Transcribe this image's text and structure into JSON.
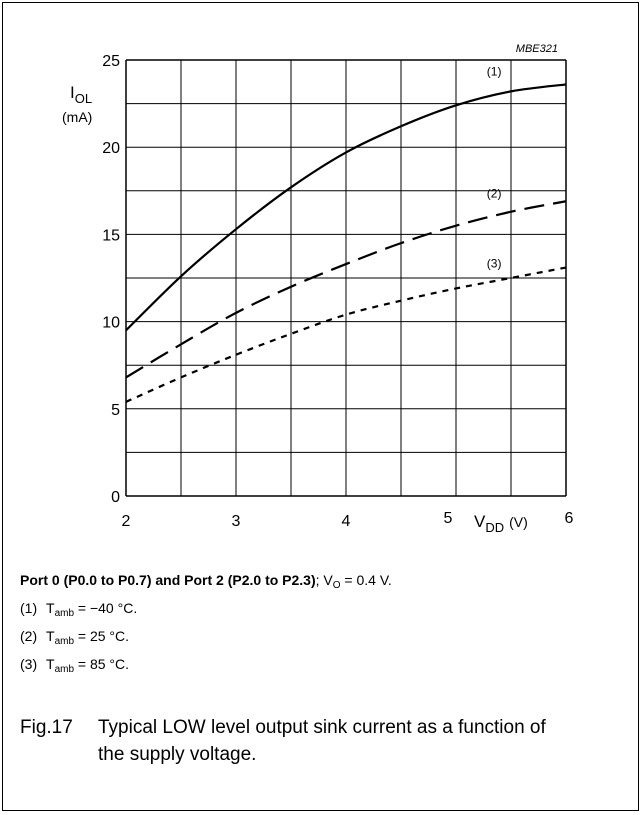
{
  "figure_code": "MBE321",
  "y_axis_label": {
    "symbol": "I",
    "subscript": "OL",
    "unit": "(mA)"
  },
  "x_axis_label": {
    "symbol": "V",
    "subscript": "DD",
    "unit": "(V)"
  },
  "chart_data": {
    "type": "line",
    "x_ticks": [
      "2",
      "3",
      "4",
      "5",
      "6"
    ],
    "y_ticks": [
      "0",
      "5",
      "10",
      "15",
      "20",
      "25"
    ],
    "xlim": [
      2,
      6
    ],
    "ylim": [
      0,
      25
    ],
    "grid": true,
    "series": [
      {
        "name": "(1)",
        "style": "solid",
        "x": [
          2,
          2.5,
          3,
          3.5,
          4,
          4.5,
          5,
          5.5,
          6
        ],
        "y": [
          9.5,
          12.6,
          15.3,
          17.7,
          19.7,
          21.2,
          22.4,
          23.2,
          23.6
        ]
      },
      {
        "name": "(2)",
        "style": "long-dash",
        "x": [
          2,
          2.5,
          3,
          3.5,
          4,
          4.5,
          5,
          5.5,
          6
        ],
        "y": [
          6.8,
          8.7,
          10.5,
          12.0,
          13.3,
          14.5,
          15.5,
          16.3,
          16.9
        ]
      },
      {
        "name": "(3)",
        "style": "short-dash",
        "x": [
          2,
          2.5,
          3,
          3.5,
          4,
          4.5,
          5,
          5.5,
          6
        ],
        "y": [
          5.4,
          6.8,
          8.1,
          9.3,
          10.4,
          11.2,
          11.9,
          12.5,
          13.1
        ]
      }
    ]
  },
  "conditions": {
    "bold": "Port 0 (P0.0 to P0.7) and Port 2 (P2.0 to P2.3)",
    "rest_prefix": "; V",
    "rest_sub": "O",
    "rest_suffix": " = 0.4 V."
  },
  "curve_notes": [
    {
      "num": "(1)",
      "sym": "T",
      "sub": "amb",
      "value": " = −40 °C."
    },
    {
      "num": "(2)",
      "sym": "T",
      "sub": "amb",
      "value": " = 25 °C."
    },
    {
      "num": "(3)",
      "sym": "T",
      "sub": "amb",
      "value": " = 85 °C."
    }
  ],
  "caption": {
    "fig": "Fig.17",
    "text": "Typical LOW level output sink current as a function of the supply voltage."
  }
}
